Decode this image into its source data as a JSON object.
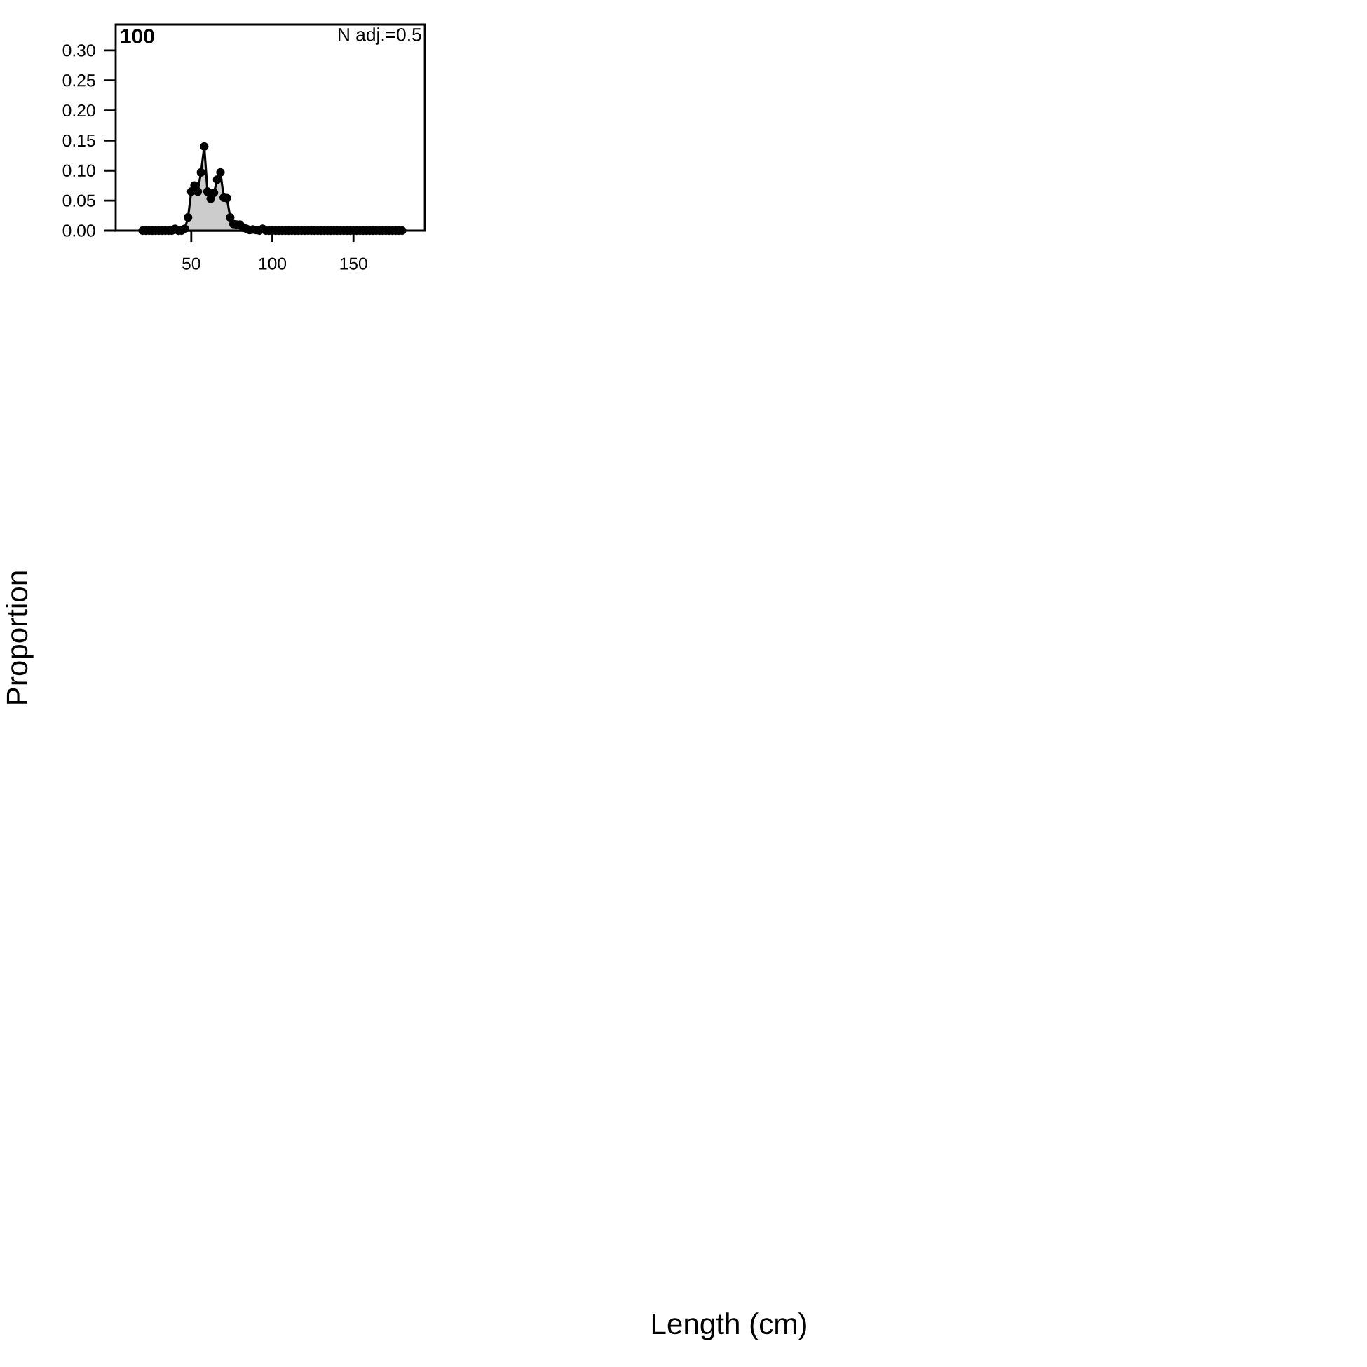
{
  "chart_data": {
    "type": "area",
    "title": "100",
    "annotations": [
      "N adj.=0.5",
      "Proportion",
      "Length (cm)"
    ],
    "x": [
      20,
      22,
      24,
      26,
      28,
      30,
      32,
      34,
      36,
      38,
      40,
      42,
      44,
      46,
      48,
      50,
      52,
      54,
      56,
      58,
      60,
      62,
      64,
      66,
      68,
      70,
      72,
      74,
      76,
      78,
      80,
      82,
      84,
      86,
      88,
      90,
      92,
      94,
      96,
      98,
      100,
      102,
      104,
      106,
      108,
      110,
      112,
      114,
      116,
      118,
      120,
      122,
      124,
      126,
      128,
      130,
      132,
      134,
      136,
      138,
      140,
      142,
      144,
      146,
      148,
      150,
      152,
      154,
      156,
      158,
      160,
      162,
      164,
      166,
      168,
      170,
      172,
      174,
      176,
      178,
      180
    ],
    "series": [
      {
        "color": "#000000",
        "values": [
          0,
          0,
          0,
          0,
          0,
          0,
          0,
          0,
          0,
          0,
          0.003,
          0,
          0,
          0.003,
          0.022,
          0.065,
          0.075,
          0.065,
          0.097,
          0.14,
          0.065,
          0.053,
          0.063,
          0.085,
          0.097,
          0.055,
          0.054,
          0.022,
          0.011,
          0.01,
          0.01,
          0.005,
          0.003,
          0.001,
          0.002,
          0.001,
          0,
          0.003,
          0,
          0,
          0,
          0,
          0,
          0,
          0,
          0,
          0,
          0,
          0,
          0,
          0,
          0,
          0,
          0,
          0,
          0,
          0,
          0,
          0,
          0,
          0,
          0,
          0,
          0,
          0,
          0,
          0,
          0,
          0,
          0,
          0,
          0,
          0,
          0,
          0,
          0,
          0,
          0,
          0,
          0,
          0
        ]
      }
    ],
    "marker": "circle",
    "xlim": [
      3.4,
      194
    ],
    "ylim": [
      0,
      0.343
    ],
    "xticks": [
      50,
      100,
      150
    ],
    "yticks": [
      {
        "value": 0,
        "label": "0.00"
      },
      {
        "value": 0.05,
        "label": "0.05"
      },
      {
        "value": 0.1,
        "label": "0.10"
      },
      {
        "value": 0.15,
        "label": "0.15"
      },
      {
        "value": 0.2,
        "label": "0.20"
      },
      {
        "value": 0.25,
        "label": "0.25"
      },
      {
        "value": 0.3,
        "label": "0.30"
      }
    ]
  }
}
